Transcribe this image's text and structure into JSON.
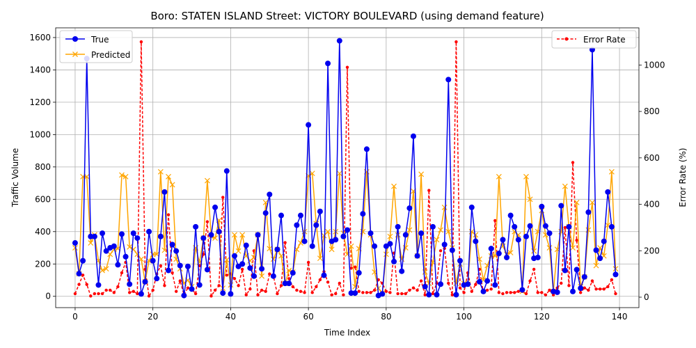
{
  "chart_data": {
    "type": "line",
    "title": "Boro: STATEN ISLAND Street: VICTORY BOULEVARD (using demand feature)",
    "xlabel": "Time Index",
    "ylabel": "Traffic Volume",
    "y2label": "Error Rate (%)",
    "xlim": [
      -5,
      145
    ],
    "ylim": [
      -70,
      1660
    ],
    "y2lim": [
      -45,
      1160
    ],
    "xticks": [
      0,
      20,
      40,
      60,
      80,
      100,
      120,
      140
    ],
    "yticks": [
      0,
      200,
      400,
      600,
      800,
      1000,
      1200,
      1400,
      1600
    ],
    "y2ticks": [
      0,
      200,
      400,
      600,
      800,
      1000
    ],
    "grid": true,
    "legend_left": [
      "True",
      "Predicted"
    ],
    "legend_right": [
      "Error Rate"
    ],
    "x": [
      0,
      1,
      2,
      3,
      4,
      5,
      6,
      7,
      8,
      9,
      10,
      11,
      12,
      13,
      14,
      15,
      16,
      17,
      18,
      19,
      20,
      21,
      22,
      23,
      24,
      25,
      26,
      27,
      28,
      29,
      30,
      31,
      32,
      33,
      34,
      35,
      36,
      37,
      38,
      39,
      40,
      41,
      42,
      43,
      44,
      45,
      46,
      47,
      48,
      49,
      50,
      51,
      52,
      53,
      54,
      55,
      56,
      57,
      58,
      59,
      60,
      61,
      62,
      63,
      64,
      65,
      66,
      67,
      68,
      69,
      70,
      71,
      72,
      73,
      74,
      75,
      76,
      77,
      78,
      79,
      80,
      81,
      82,
      83,
      84,
      85,
      86,
      87,
      88,
      89,
      90,
      91,
      92,
      93,
      94,
      95,
      96,
      97,
      98,
      99,
      100,
      101,
      102,
      103,
      104,
      105,
      106,
      107,
      108,
      109,
      110,
      111,
      112,
      113,
      114,
      115,
      116,
      117,
      118,
      119,
      120,
      121,
      122,
      123,
      124,
      125,
      126,
      127,
      128,
      129,
      130,
      131,
      132,
      133,
      134,
      135,
      136,
      137,
      138,
      139
    ],
    "series": [
      {
        "name": "True",
        "color": "#0000ee",
        "values": [
          330,
          140,
          220,
          1470,
          370,
          370,
          70,
          390,
          280,
          300,
          310,
          195,
          385,
          245,
          75,
          390,
          360,
          15,
          90,
          400,
          220,
          110,
          370,
          645,
          160,
          320,
          280,
          190,
          5,
          185,
          45,
          430,
          70,
          360,
          165,
          380,
          550,
          400,
          20,
          775,
          15,
          250,
          185,
          200,
          315,
          175,
          125,
          380,
          170,
          515,
          630,
          125,
          290,
          500,
          80,
          80,
          145,
          440,
          500,
          340,
          1060,
          310,
          440,
          525,
          130,
          1440,
          340,
          350,
          1580,
          370,
          410,
          20,
          20,
          145,
          510,
          910,
          390,
          310,
          5,
          15,
          310,
          325,
          215,
          430,
          155,
          380,
          545,
          990,
          250,
          390,
          60,
          10,
          430,
          10,
          75,
          320,
          1340,
          285,
          10,
          220,
          70,
          75,
          550,
          340,
          90,
          30,
          95,
          295,
          70,
          265,
          350,
          240,
          500,
          430,
          350,
          40,
          370,
          435,
          235,
          240,
          555,
          435,
          390,
          30,
          25,
          560,
          160,
          430,
          30,
          165,
          50,
          120,
          520,
          1525,
          285,
          235,
          340,
          645,
          430,
          135
        ]
      },
      {
        "name": "Predicted",
        "color": "#ffa500",
        "values": [
          300,
          140,
          740,
          740,
          330,
          380,
          220,
          160,
          170,
          260,
          290,
          295,
          750,
          740,
          305,
          290,
          260,
          230,
          90,
          220,
          260,
          260,
          770,
          285,
          740,
          690,
          230,
          170,
          80,
          100,
          60,
          300,
          210,
          360,
          715,
          370,
          360,
          470,
          50,
          225,
          70,
          380,
          280,
          380,
          250,
          220,
          240,
          380,
          125,
          580,
          295,
          230,
          290,
          250,
          80,
          160,
          150,
          290,
          330,
          400,
          745,
          760,
          450,
          235,
          375,
          400,
          290,
          400,
          760,
          390,
          260,
          310,
          60,
          295,
          400,
          770,
          380,
          150,
          50,
          20,
          260,
          370,
          680,
          380,
          230,
          300,
          410,
          650,
          250,
          755,
          150,
          80,
          210,
          350,
          410,
          550,
          400,
          300,
          80,
          200,
          80,
          75,
          400,
          380,
          230,
          100,
          190,
          250,
          250,
          740,
          310,
          260,
          270,
          400,
          380,
          30,
          740,
          600,
          280,
          400,
          530,
          380,
          300,
          30,
          290,
          400,
          680,
          430,
          300,
          580,
          60,
          120,
          410,
          580,
          190,
          300,
          250,
          440,
          770,
          170
        ]
      },
      {
        "name": "Error Rate",
        "color": "#ff0000",
        "values": [
          15,
          55,
          95,
          55,
          5,
          15,
          15,
          15,
          30,
          30,
          20,
          45,
          105,
          150,
          20,
          25,
          15,
          1100,
          120,
          5,
          30,
          100,
          135,
          50,
          355,
          105,
          25,
          70,
          10,
          40,
          35,
          15,
          135,
          185,
          325,
          5,
          30,
          50,
          430,
          95,
          100,
          80,
          50,
          120,
          10,
          35,
          200,
          10,
          30,
          25,
          100,
          90,
          15,
          50,
          235,
          80,
          45,
          30,
          25,
          20,
          150,
          20,
          45,
          75,
          110,
          65,
          10,
          15,
          60,
          10,
          990,
          125,
          130,
          25,
          20,
          20,
          20,
          30,
          75,
          60,
          25,
          20,
          190,
          15,
          15,
          15,
          30,
          40,
          30,
          70,
          10,
          460,
          15,
          60,
          200,
          210,
          60,
          10,
          1100,
          40,
          20,
          105,
          25,
          55,
          120,
          20,
          30,
          35,
          330,
          20,
          15,
          20,
          20,
          20,
          25,
          25,
          15,
          70,
          120,
          20,
          20,
          10,
          30,
          10,
          40,
          60,
          300,
          50,
          580,
          245,
          20,
          40,
          30,
          70,
          35,
          35,
          35,
          45,
          75,
          15
        ]
      }
    ]
  }
}
